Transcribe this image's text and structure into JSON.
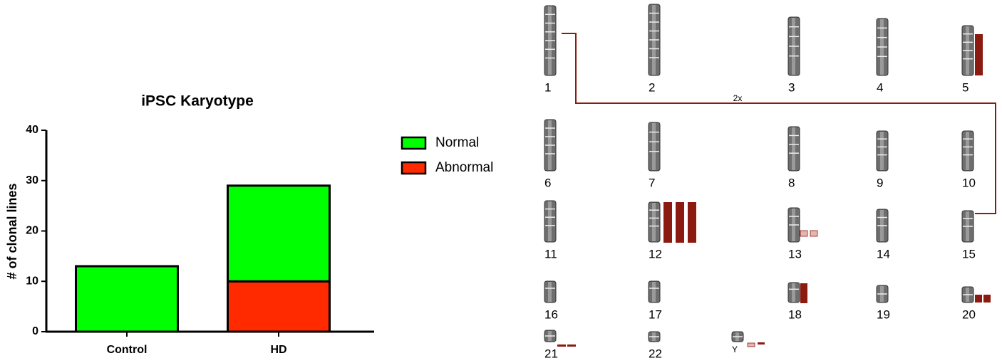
{
  "chart_data": {
    "type": "bar",
    "stacked": true,
    "title": "iPSC Karyotype",
    "y_label": "# of clonal lines",
    "categories": [
      "Control",
      "HD"
    ],
    "series": [
      {
        "name": "Normal",
        "color": "#00ff00",
        "values": [
          13,
          19
        ]
      },
      {
        "name": "Abnormal",
        "color": "#ff2a00",
        "values": [
          0,
          10
        ]
      }
    ],
    "ylim": [
      0,
      40
    ],
    "yticks": [
      0,
      10,
      20,
      30,
      40
    ],
    "legend": "right"
  },
  "karyotype": {
    "chromosomes": [
      "1",
      "2",
      "3",
      "4",
      "5",
      "6",
      "7",
      "8",
      "9",
      "10",
      "11",
      "12",
      "13",
      "14",
      "15",
      "16",
      "17",
      "18",
      "19",
      "20",
      "21",
      "22",
      "Y"
    ],
    "link_label": "2x"
  }
}
